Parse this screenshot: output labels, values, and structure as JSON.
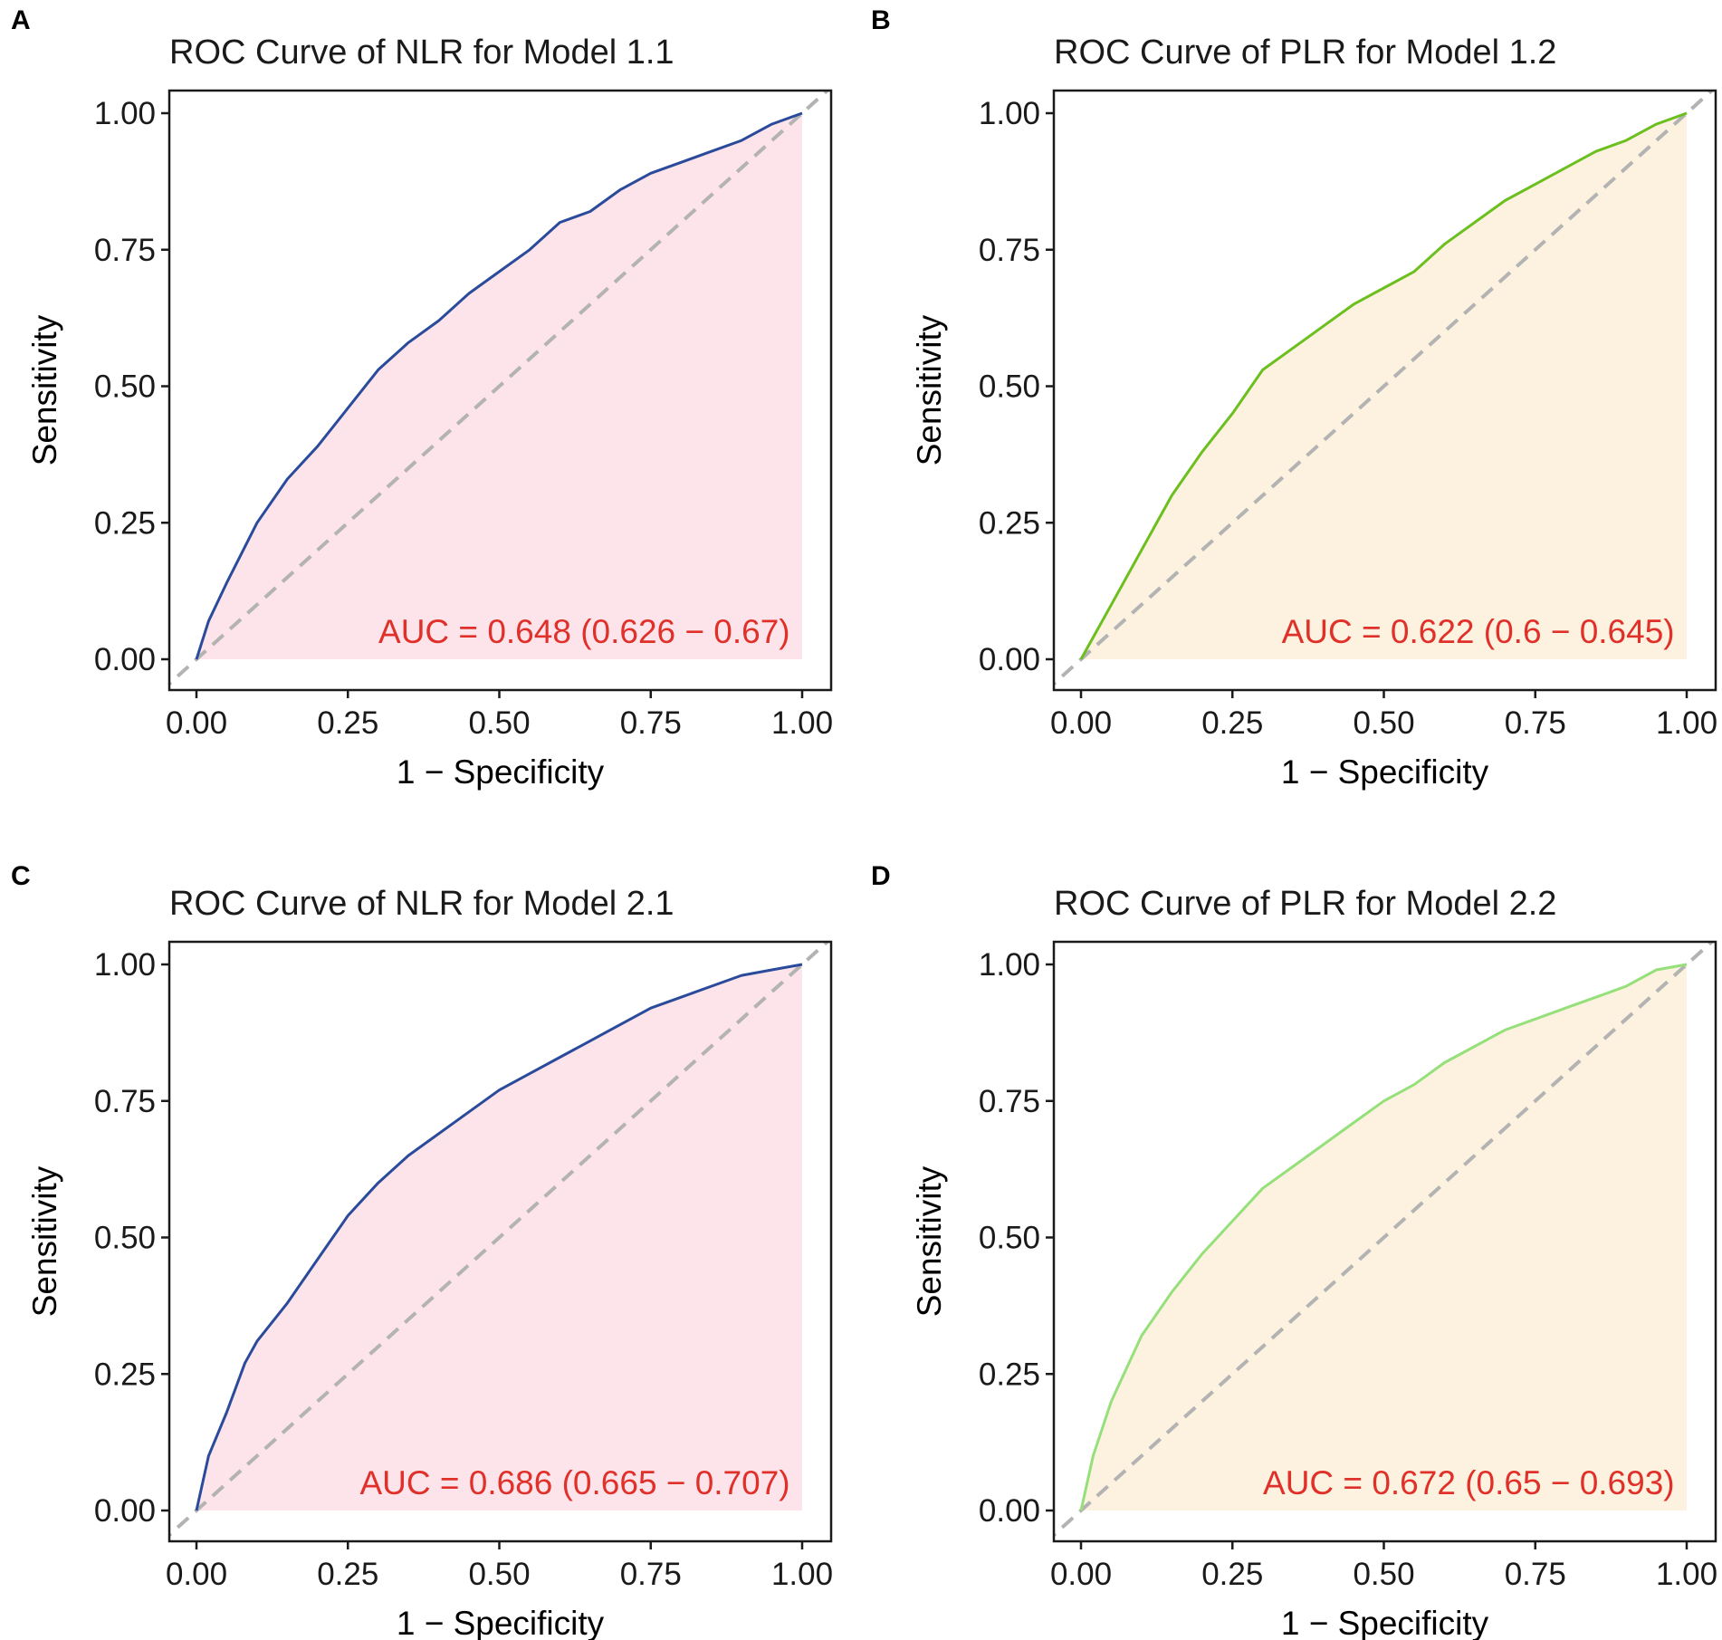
{
  "chart_data": [
    {
      "type": "line",
      "panel": "A",
      "title": "ROC Curve of NLR for Model 1.1",
      "xlabel": "1 − Specificity",
      "ylabel": "Sensitivity",
      "xlim": [
        0,
        1
      ],
      "ylim": [
        0,
        1
      ],
      "xticks": [
        "0.00",
        "0.25",
        "0.50",
        "0.75",
        "1.00"
      ],
      "yticks": [
        "0.00",
        "0.25",
        "0.50",
        "0.75",
        "1.00"
      ],
      "annotation": "AUC = 0.648 (0.626 − 0.67)",
      "line_color": "#2a4b9b",
      "fill_color": "#fde4ea",
      "annotation_color": "#e0302a",
      "series": [
        {
          "name": "NLR",
          "x": [
            0,
            0.02,
            0.05,
            0.1,
            0.15,
            0.2,
            0.25,
            0.3,
            0.35,
            0.4,
            0.45,
            0.5,
            0.55,
            0.6,
            0.65,
            0.7,
            0.75,
            0.8,
            0.85,
            0.9,
            0.95,
            1.0
          ],
          "y": [
            0,
            0.07,
            0.14,
            0.25,
            0.33,
            0.39,
            0.46,
            0.53,
            0.58,
            0.62,
            0.67,
            0.71,
            0.75,
            0.8,
            0.82,
            0.86,
            0.89,
            0.91,
            0.93,
            0.95,
            0.98,
            1.0
          ]
        },
        {
          "name": "Reference",
          "x": [
            0,
            1
          ],
          "y": [
            0,
            1
          ]
        }
      ]
    },
    {
      "type": "line",
      "panel": "B",
      "title": "ROC Curve of PLR for Model 1.2",
      "xlabel": "1 − Specificity",
      "ylabel": "Sensitivity",
      "xlim": [
        0,
        1
      ],
      "ylim": [
        0,
        1
      ],
      "xticks": [
        "0.00",
        "0.25",
        "0.50",
        "0.75",
        "1.00"
      ],
      "yticks": [
        "0.00",
        "0.25",
        "0.50",
        "0.75",
        "1.00"
      ],
      "annotation": "AUC = 0.622 (0.6 − 0.645)",
      "line_color": "#6bbf1f",
      "fill_color": "#fdf2df",
      "annotation_color": "#e0302a",
      "series": [
        {
          "name": "PLR",
          "x": [
            0,
            0.02,
            0.05,
            0.1,
            0.15,
            0.2,
            0.25,
            0.3,
            0.35,
            0.4,
            0.45,
            0.5,
            0.55,
            0.6,
            0.65,
            0.7,
            0.75,
            0.8,
            0.85,
            0.9,
            0.95,
            1.0
          ],
          "y": [
            0,
            0.04,
            0.1,
            0.2,
            0.3,
            0.38,
            0.45,
            0.53,
            0.57,
            0.61,
            0.65,
            0.68,
            0.71,
            0.76,
            0.8,
            0.84,
            0.87,
            0.9,
            0.93,
            0.95,
            0.98,
            1.0
          ]
        },
        {
          "name": "Reference",
          "x": [
            0,
            1
          ],
          "y": [
            0,
            1
          ]
        }
      ]
    },
    {
      "type": "line",
      "panel": "C",
      "title": "ROC Curve of NLR for Model 2.1",
      "xlabel": "1 − Specificity",
      "ylabel": "Sensitivity",
      "xlim": [
        0,
        1
      ],
      "ylim": [
        0,
        1
      ],
      "xticks": [
        "0.00",
        "0.25",
        "0.50",
        "0.75",
        "1.00"
      ],
      "yticks": [
        "0.00",
        "0.25",
        "0.50",
        "0.75",
        "1.00"
      ],
      "annotation": "AUC = 0.686 (0.665 − 0.707)",
      "line_color": "#2a4b9b",
      "fill_color": "#fde4ea",
      "annotation_color": "#e0302a",
      "series": [
        {
          "name": "NLR",
          "x": [
            0,
            0.02,
            0.05,
            0.08,
            0.1,
            0.15,
            0.2,
            0.25,
            0.3,
            0.35,
            0.4,
            0.45,
            0.5,
            0.55,
            0.6,
            0.65,
            0.7,
            0.75,
            0.8,
            0.85,
            0.9,
            0.95,
            1.0
          ],
          "y": [
            0,
            0.1,
            0.18,
            0.27,
            0.31,
            0.38,
            0.46,
            0.54,
            0.6,
            0.65,
            0.69,
            0.73,
            0.77,
            0.8,
            0.83,
            0.86,
            0.89,
            0.92,
            0.94,
            0.96,
            0.98,
            0.99,
            1.0
          ]
        },
        {
          "name": "Reference",
          "x": [
            0,
            1
          ],
          "y": [
            0,
            1
          ]
        }
      ]
    },
    {
      "type": "line",
      "panel": "D",
      "title": "ROC Curve of PLR for Model 2.2",
      "xlabel": "1 − Specificity",
      "ylabel": "Sensitivity",
      "xlim": [
        0,
        1
      ],
      "ylim": [
        0,
        1
      ],
      "xticks": [
        "0.00",
        "0.25",
        "0.50",
        "0.75",
        "1.00"
      ],
      "yticks": [
        "0.00",
        "0.25",
        "0.50",
        "0.75",
        "1.00"
      ],
      "annotation": "AUC = 0.672 (0.65 − 0.693)",
      "line_color": "#95e07a",
      "fill_color": "#fdf2df",
      "annotation_color": "#e0302a",
      "series": [
        {
          "name": "PLR",
          "x": [
            0,
            0.02,
            0.05,
            0.1,
            0.15,
            0.2,
            0.25,
            0.3,
            0.35,
            0.4,
            0.45,
            0.5,
            0.55,
            0.6,
            0.65,
            0.7,
            0.75,
            0.8,
            0.85,
            0.9,
            0.95,
            1.0
          ],
          "y": [
            0,
            0.1,
            0.2,
            0.32,
            0.4,
            0.47,
            0.53,
            0.59,
            0.63,
            0.67,
            0.71,
            0.75,
            0.78,
            0.82,
            0.85,
            0.88,
            0.9,
            0.92,
            0.94,
            0.96,
            0.99,
            1.0
          ]
        },
        {
          "name": "Reference",
          "x": [
            0,
            1
          ],
          "y": [
            0,
            1
          ]
        }
      ]
    }
  ]
}
